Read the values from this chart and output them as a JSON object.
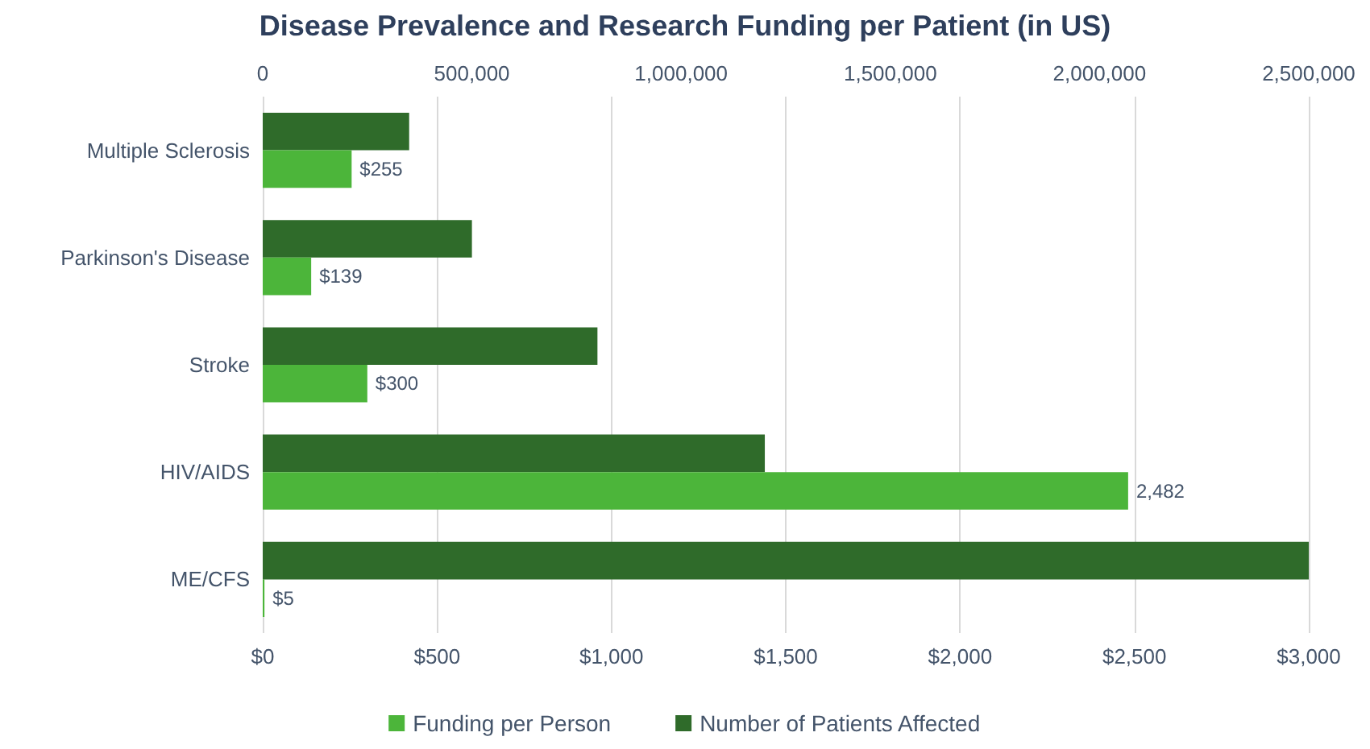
{
  "chart_data": {
    "type": "bar",
    "orientation": "horizontal",
    "title": "Disease Prevalence and Research Funding per Patient (in US)",
    "categories": [
      "Multiple Sclerosis",
      "Parkinson's Disease",
      "Stroke",
      "HIV/AIDS",
      "ME/CFS"
    ],
    "series": [
      {
        "name": "Funding per Person",
        "color": "#4cb53a",
        "values": [
          255,
          139,
          300,
          2482,
          5
        ],
        "value_labels": [
          "$255",
          "$139",
          "$300",
          "2,482",
          "$5"
        ]
      },
      {
        "name": "Number of Patients Affected",
        "color": "#2f6b2a",
        "axis": "x2",
        "values": [
          350000,
          500000,
          800000,
          1200000,
          2500000
        ]
      }
    ],
    "xlim": [
      0,
      3000
    ],
    "xticks": [
      {
        "value": 0,
        "label": "$0"
      },
      {
        "value": 500,
        "label": "$500"
      },
      {
        "value": 1000,
        "label": "$1,000"
      },
      {
        "value": 1500,
        "label": "$1,500"
      },
      {
        "value": 2000,
        "label": "$2,000"
      },
      {
        "value": 2500,
        "label": "$2,500"
      },
      {
        "value": 3000,
        "label": "$3,000"
      }
    ],
    "x2lim": [
      0,
      2500000
    ],
    "x2ticks": [
      0,
      {
        "value": 500000,
        "label": "500,000"
      },
      {
        "value": 1000000,
        "label": "1,000,000"
      },
      {
        "value": 1500000,
        "label": "1,500,000"
      },
      {
        "value": 2000000,
        "label": "2,000,000"
      },
      {
        "value": 2500000,
        "label": "2,500,000"
      }
    ],
    "grid": "x",
    "legend": "bottom"
  }
}
